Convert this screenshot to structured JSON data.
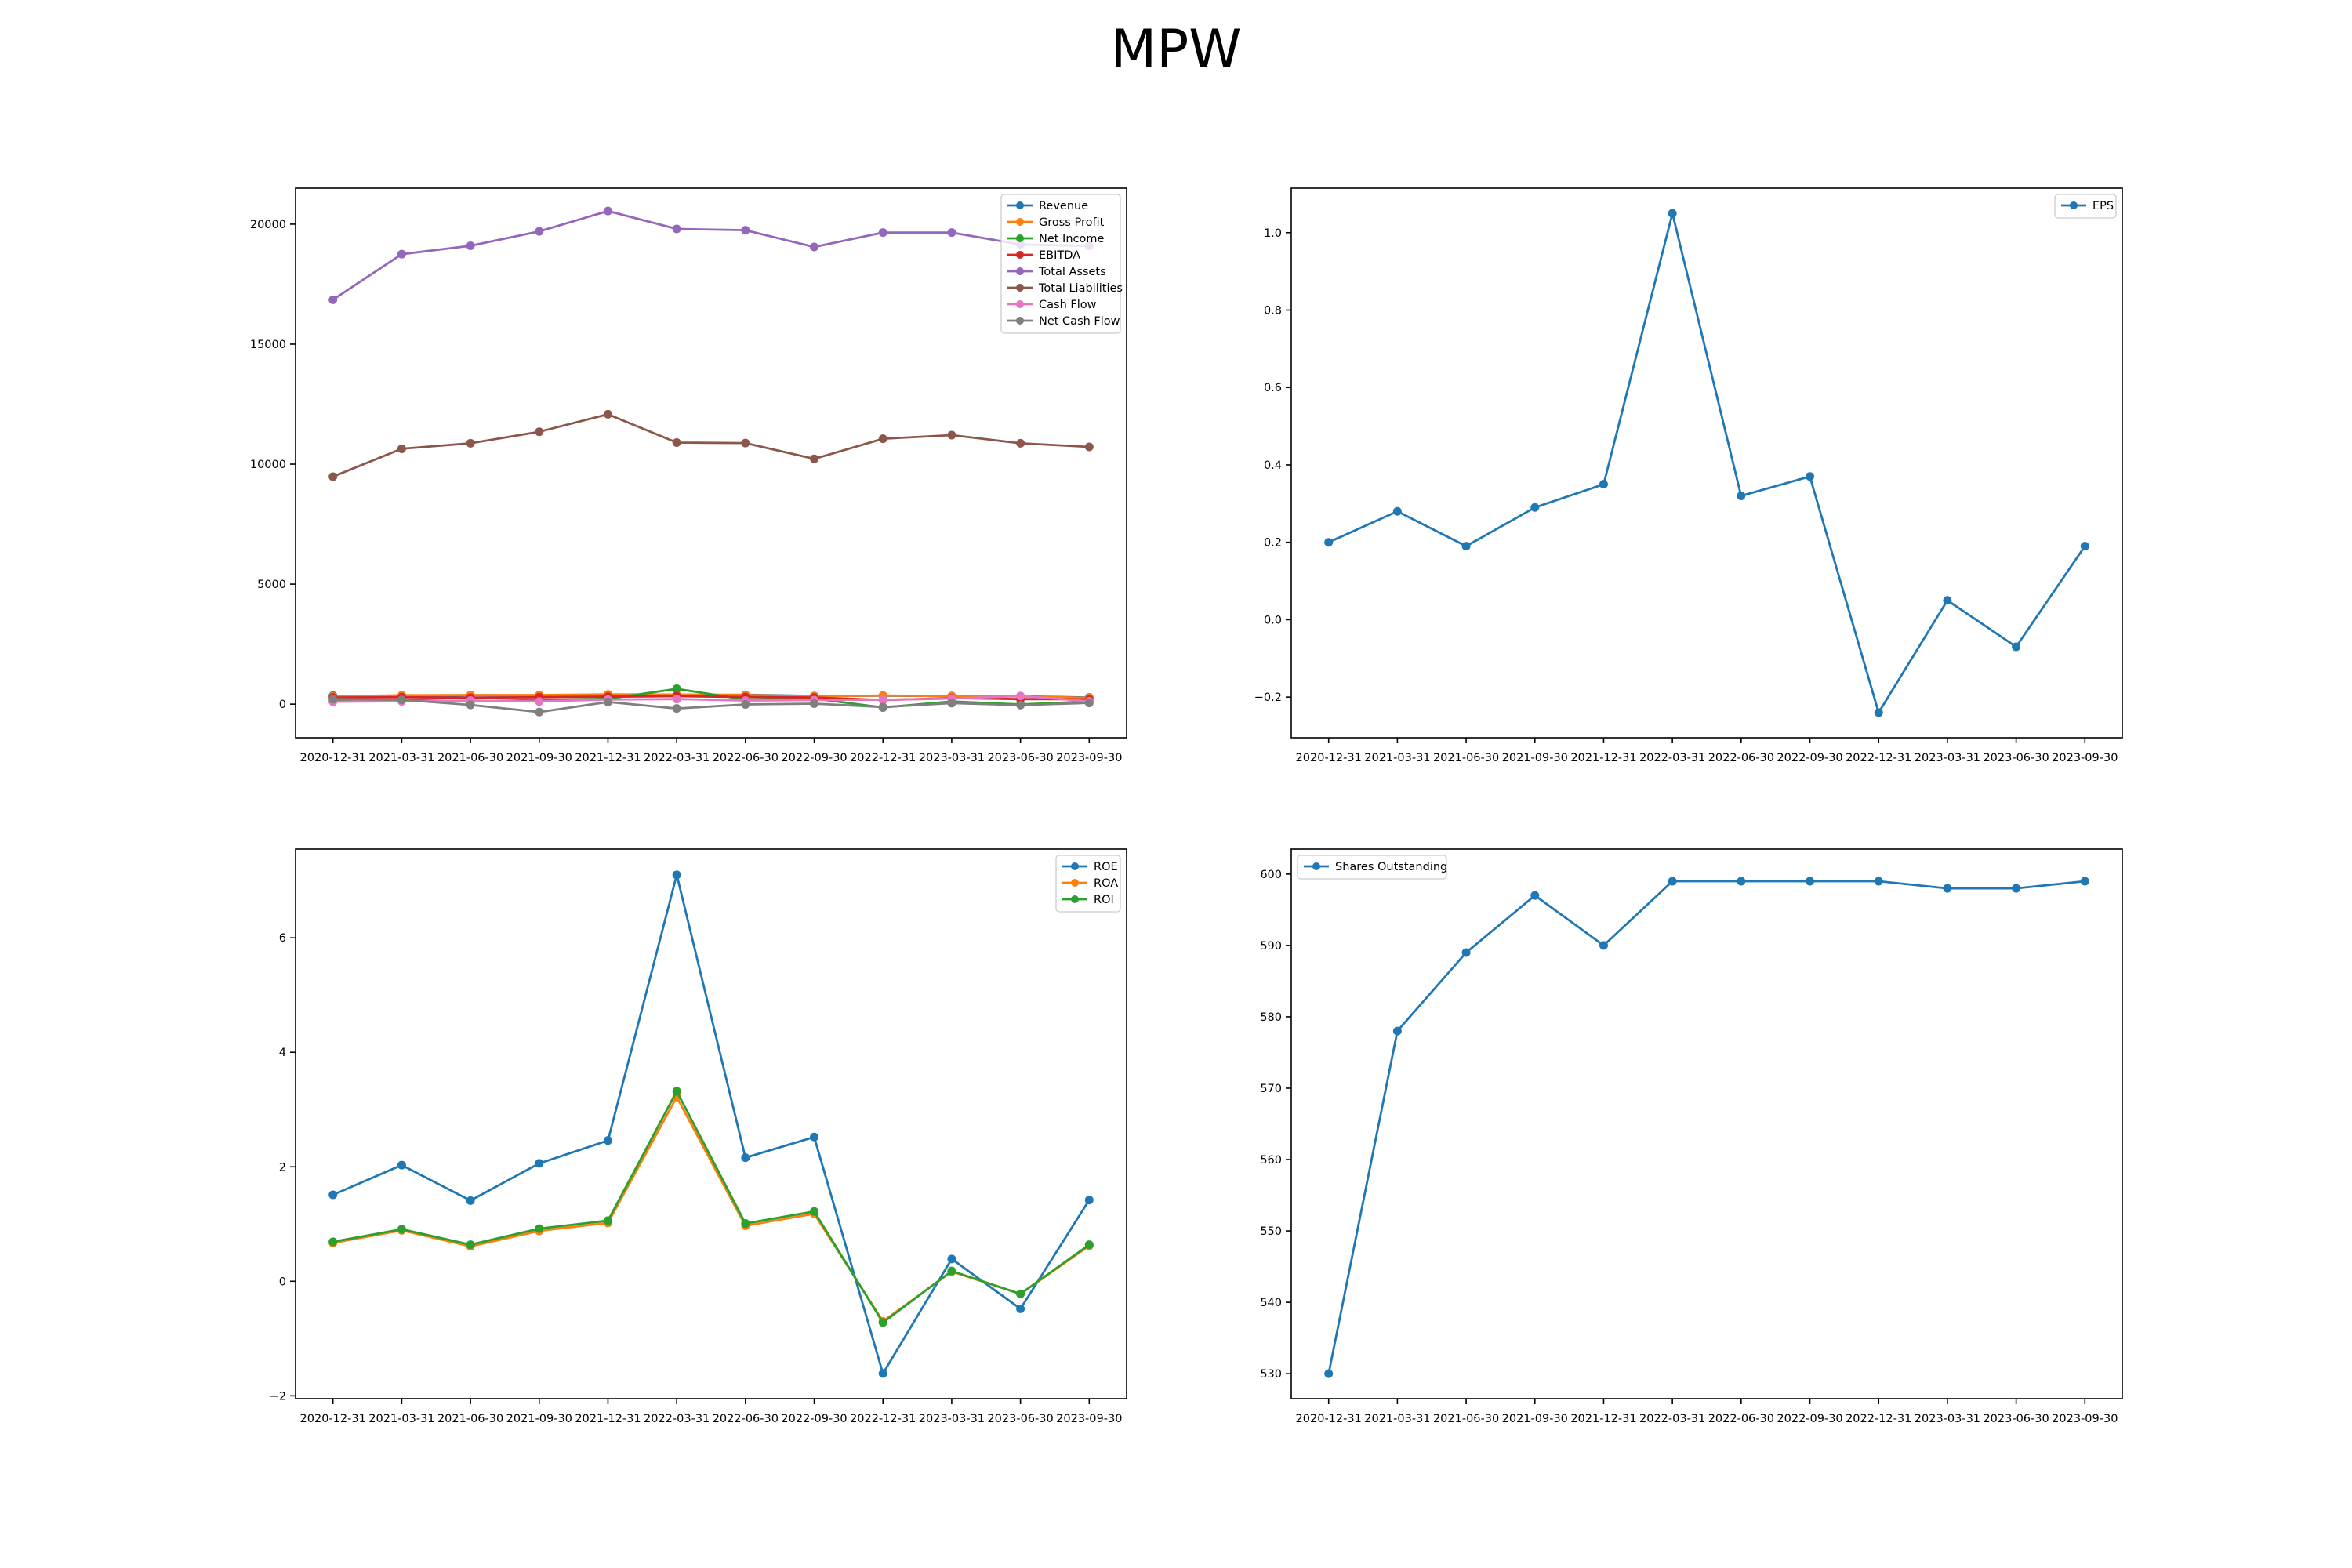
{
  "figure": {
    "title": "MPW"
  },
  "colors": {
    "blue": "#1f77b4",
    "orange": "#ff7f0e",
    "green": "#2ca02c",
    "red": "#d62728",
    "purple": "#9467bd",
    "brown": "#8c564b",
    "pink": "#e377c2",
    "gray": "#7f7f7f"
  },
  "chart_data": [
    {
      "type": "line",
      "title": "",
      "xlabel": "",
      "ylabel": "",
      "x": [
        "2020-12-31",
        "2021-03-31",
        "2021-06-30",
        "2021-09-30",
        "2021-12-31",
        "2022-03-31",
        "2022-06-30",
        "2022-09-30",
        "2022-12-31",
        "2023-03-31",
        "2023-06-30",
        "2023-09-30"
      ],
      "ylim": [
        -1400,
        21500
      ],
      "yticks": [
        0,
        5000,
        10000,
        15000,
        20000
      ],
      "legend": "upper right",
      "series": [
        {
          "name": "Revenue",
          "color": "#1f77b4",
          "values": [
            350,
            330,
            370,
            360,
            390,
            380,
            390,
            340,
            350,
            340,
            330,
            280
          ]
        },
        {
          "name": "Gross Profit",
          "color": "#ff7f0e",
          "values": [
            320,
            370,
            380,
            380,
            410,
            400,
            380,
            330,
            360,
            330,
            320,
            260
          ]
        },
        {
          "name": "Net Income",
          "color": "#2ca02c",
          "values": [
            120,
            180,
            110,
            170,
            220,
            640,
            190,
            230,
            -140,
            110,
            -10,
            110
          ]
        },
        {
          "name": "EBITDA",
          "color": "#d62728",
          "values": [
            280,
            290,
            270,
            290,
            310,
            330,
            300,
            280,
            170,
            250,
            210,
            200
          ]
        },
        {
          "name": "Total Assets",
          "color": "#9467bd",
          "values": [
            16850,
            18750,
            19100,
            19700,
            20550,
            19800,
            19750,
            19050,
            19650,
            19650,
            19150,
            19100
          ]
        },
        {
          "name": "Total Liabilities",
          "color": "#8c564b",
          "values": [
            9480,
            10640,
            10870,
            11350,
            12080,
            10900,
            10880,
            10220,
            11060,
            11210,
            10870,
            10720
          ]
        },
        {
          "name": "Cash Flow",
          "color": "#e377c2",
          "values": [
            100,
            120,
            150,
            110,
            190,
            210,
            150,
            170,
            180,
            230,
            340,
            120
          ]
        },
        {
          "name": "Net Cash Flow",
          "color": "#7f7f7f",
          "values": [
            210,
            180,
            -30,
            -330,
            90,
            -180,
            -10,
            20,
            -120,
            40,
            -40,
            50
          ]
        }
      ]
    },
    {
      "type": "line",
      "title": "",
      "xlabel": "",
      "ylabel": "",
      "x": [
        "2020-12-31",
        "2021-03-31",
        "2021-06-30",
        "2021-09-30",
        "2021-12-31",
        "2022-03-31",
        "2022-06-30",
        "2022-09-30",
        "2022-12-31",
        "2023-03-31",
        "2023-06-30",
        "2023-09-30"
      ],
      "ylim": [
        -0.305,
        1.115
      ],
      "yticks": [
        -0.2,
        0.0,
        0.2,
        0.4,
        0.6,
        0.8,
        1.0
      ],
      "legend": "upper right",
      "series": [
        {
          "name": "EPS",
          "color": "#1f77b4",
          "values": [
            0.2,
            0.28,
            0.19,
            0.29,
            0.35,
            1.05,
            0.32,
            0.37,
            -0.24,
            0.05,
            -0.07,
            0.19
          ]
        }
      ]
    },
    {
      "type": "line",
      "title": "",
      "xlabel": "",
      "ylabel": "",
      "x": [
        "2020-12-31",
        "2021-03-31",
        "2021-06-30",
        "2021-09-30",
        "2021-12-31",
        "2022-03-31",
        "2022-06-30",
        "2022-09-30",
        "2022-12-31",
        "2023-03-31",
        "2023-06-30",
        "2023-09-30"
      ],
      "ylim": [
        -2.05,
        7.55
      ],
      "yticks": [
        -2,
        0,
        2,
        4,
        6
      ],
      "legend": "upper right",
      "series": [
        {
          "name": "ROE",
          "color": "#1f77b4",
          "values": [
            1.51,
            2.03,
            1.41,
            2.06,
            2.46,
            7.1,
            2.16,
            2.52,
            -1.61,
            0.39,
            -0.48,
            1.42
          ]
        },
        {
          "name": "ROA",
          "color": "#ff7f0e",
          "values": [
            0.67,
            0.89,
            0.61,
            0.88,
            1.02,
            3.22,
            0.97,
            1.18,
            -0.7,
            0.17,
            -0.22,
            0.62
          ]
        },
        {
          "name": "ROI",
          "color": "#2ca02c",
          "values": [
            0.69,
            0.91,
            0.64,
            0.92,
            1.06,
            3.32,
            1.01,
            1.22,
            -0.72,
            0.18,
            -0.22,
            0.64
          ]
        }
      ]
    },
    {
      "type": "line",
      "title": "",
      "xlabel": "",
      "ylabel": "",
      "x": [
        "2020-12-31",
        "2021-03-31",
        "2021-06-30",
        "2021-09-30",
        "2021-12-31",
        "2022-03-31",
        "2022-06-30",
        "2022-09-30",
        "2022-12-31",
        "2023-03-31",
        "2023-06-30",
        "2023-09-30"
      ],
      "ylim": [
        526.5,
        603.5
      ],
      "yticks": [
        530,
        540,
        550,
        560,
        570,
        580,
        590,
        600
      ],
      "legend": "upper left",
      "series": [
        {
          "name": "Shares Outstanding",
          "color": "#1f77b4",
          "values": [
            530,
            578,
            589,
            597,
            590,
            599,
            599,
            599,
            599,
            598,
            598,
            599
          ]
        }
      ]
    }
  ]
}
